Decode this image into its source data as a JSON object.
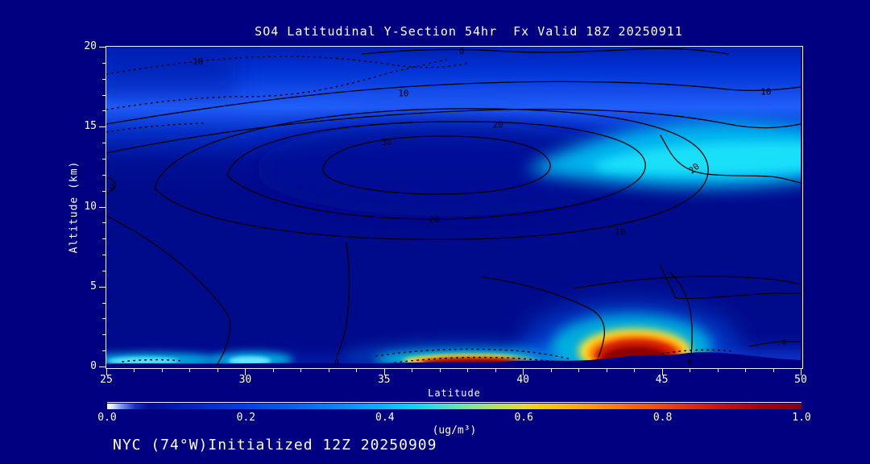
{
  "title": "SO4 Latitudinal Y-Section 54hr  Fx Valid 18Z 20250911",
  "footer": "NYC (74°W)Initialized 12Z 20250909",
  "axes": {
    "x_label": "Latitude",
    "y_label": "Altitude (km)"
  },
  "colorbar": {
    "unit_label": "(ug/m³)"
  },
  "chart_data": {
    "type": "heatmap",
    "variant": "filled_contour_latitude_height_cross_section",
    "title": "SO4 Latitudinal Y-Section 54hr  Fx Valid 18Z 20250911",
    "station": "NYC (74°W)",
    "init_label": "Initialized 12Z 20250909",
    "xlabel": "Latitude",
    "ylabel": "Altitude (km)",
    "xlim": [
      25,
      50
    ],
    "ylim": [
      0,
      20
    ],
    "x_major_ticks": [
      25,
      30,
      35,
      40,
      45,
      50
    ],
    "x_minor_step": 1,
    "y_major_ticks": [
      0,
      5,
      10,
      15,
      20
    ],
    "y_minor_step": 1,
    "grid": false,
    "colorbar": {
      "unit_label": "(ug/m³)",
      "range": [
        0.0,
        1.0
      ],
      "tick_labels": [
        "0.0",
        "0.2",
        "0.4",
        "0.6",
        "0.8",
        "1.0"
      ],
      "stops": [
        {
          "at": 0.0,
          "color": "#ffffff"
        },
        {
          "at": 0.008,
          "color": "#dceaff"
        },
        {
          "at": 0.02,
          "color": "#7a9af0"
        },
        {
          "at": 0.04,
          "color": "#1930c0"
        },
        {
          "at": 0.06,
          "color": "#000d98"
        },
        {
          "at": 0.1,
          "color": "#001cb0"
        },
        {
          "at": 0.15,
          "color": "#0030cc"
        },
        {
          "at": 0.2,
          "color": "#0043df"
        },
        {
          "at": 0.27,
          "color": "#0066ea"
        },
        {
          "at": 0.34,
          "color": "#0090f2"
        },
        {
          "at": 0.4,
          "color": "#00baf8"
        },
        {
          "at": 0.44,
          "color": "#00d8f0"
        },
        {
          "at": 0.48,
          "color": "#3ce4c8"
        },
        {
          "at": 0.52,
          "color": "#7ce890"
        },
        {
          "at": 0.56,
          "color": "#b4e455"
        },
        {
          "at": 0.6,
          "color": "#e8dc20"
        },
        {
          "at": 0.64,
          "color": "#fcc400"
        },
        {
          "at": 0.7,
          "color": "#ff9800"
        },
        {
          "at": 0.76,
          "color": "#ff6400"
        },
        {
          "at": 0.82,
          "color": "#f03800"
        },
        {
          "at": 0.88,
          "color": "#d01400"
        },
        {
          "at": 0.94,
          "color": "#a80400"
        },
        {
          "at": 1.0,
          "color": "#8a0000"
        }
      ]
    },
    "overlay_contours": {
      "line_color": "#000000",
      "labels": [
        {
          "text": "-10",
          "lat": 28.2,
          "alt": 19.1,
          "dotted": true
        },
        {
          "text": "0",
          "lat": 37.8,
          "alt": 19.75
        },
        {
          "text": "10",
          "lat": 35.7,
          "alt": 17.1
        },
        {
          "text": "10",
          "lat": 48.75,
          "alt": 17.2
        },
        {
          "text": "20",
          "lat": 39.1,
          "alt": 15.15
        },
        {
          "text": "30",
          "lat": 35.1,
          "alt": 14.05
        },
        {
          "text": "20",
          "lat": 36.8,
          "alt": 9.2
        },
        {
          "text": "10",
          "lat": 43.5,
          "alt": 8.45
        },
        {
          "text": "20",
          "lat": 46.15,
          "alt": 12.4,
          "rot": -40
        },
        {
          "text": "0",
          "lat": 25.2,
          "alt": 11.3,
          "small": true
        },
        {
          "text": "0",
          "lat": 33.3,
          "alt": 0.35,
          "small": true
        },
        {
          "text": "0",
          "lat": 42.7,
          "alt": 0.35,
          "small": true
        },
        {
          "text": "0",
          "lat": 46.0,
          "alt": 0.35,
          "small": true
        },
        {
          "text": "0",
          "lat": 49.4,
          "alt": 1.55,
          "small": true
        }
      ]
    },
    "fill_features": [
      {
        "name": "elevated_so4_layer",
        "lat_range": [
          25,
          50
        ],
        "alt_range": [
          11,
          18
        ],
        "approx_value_ug_m3": [
          0.15,
          0.35
        ]
      },
      {
        "name": "bright_band_upper_right",
        "lat_range": [
          42,
          50
        ],
        "alt_range": [
          13,
          15.5
        ],
        "approx_value_ug_m3": 0.45
      },
      {
        "name": "surface_plume_major",
        "lat_range": [
          42.5,
          46
        ],
        "alt_range": [
          0,
          2
        ],
        "approx_value_ug_m3": 1.0
      },
      {
        "name": "surface_plume_secondary",
        "lat_range": [
          36,
          40.5
        ],
        "alt_range": [
          0,
          0.7
        ],
        "approx_value_ug_m3": 1.0
      },
      {
        "name": "surface_haze_west",
        "lat_range": [
          25,
          29.5
        ],
        "alt_range": [
          0,
          0.6
        ],
        "approx_value_ug_m3": 0.4
      },
      {
        "name": "surface_haze_30_33",
        "lat_range": [
          29.5,
          33
        ],
        "alt_range": [
          0,
          0.6
        ],
        "approx_value_ug_m3": 0.45
      }
    ]
  }
}
